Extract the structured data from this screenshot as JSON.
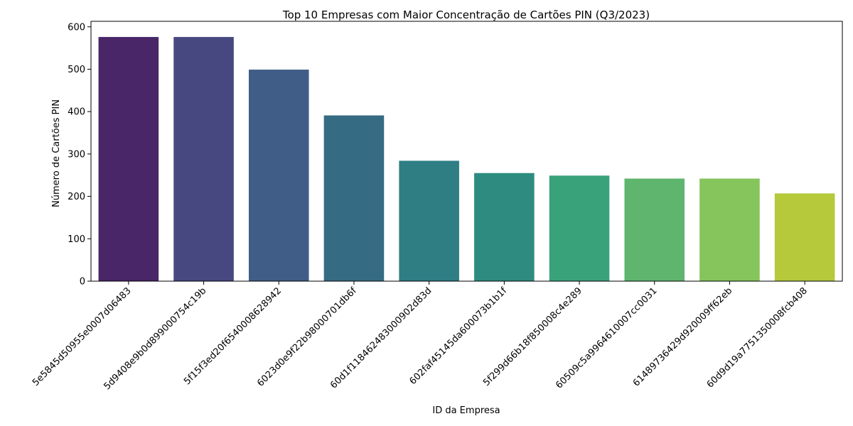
{
  "chart_data": {
    "type": "bar",
    "title": "Top 10 Empresas com Maior Concentração de Cartões PIN (Q3/2023)",
    "xlabel": "ID da Empresa",
    "ylabel": "Número de Cartões PIN",
    "ylim": [
      0,
      600
    ],
    "yticks": [
      0,
      100,
      200,
      300,
      400,
      500,
      600
    ],
    "grid": false,
    "categories": [
      "5e5845d50955e0007d06483",
      "5d9408e9b0d899000754c19b",
      "5f15f3ed20f654000862894 2",
      "6023d0e9f22b98000701db6f",
      "60d1f11846248300090 2d83d",
      "602faf45145da600073b1b1f",
      "5f299d66b18f850008c4e289",
      "60509c5a99646 10007cc0031",
      "614897364 29d920009ff62eb",
      "60d9d19a775135 0008fcb408"
    ],
    "values": [
      576,
      576,
      499,
      391,
      284,
      255,
      249,
      242,
      242,
      207
    ],
    "colors": [
      "#482667",
      "#46487f",
      "#3f5d86",
      "#366b84",
      "#2e7e84",
      "#2d8c7f",
      "#3aa27a",
      "#5fb56e",
      "#86c45c",
      "#b5c93b"
    ]
  }
}
